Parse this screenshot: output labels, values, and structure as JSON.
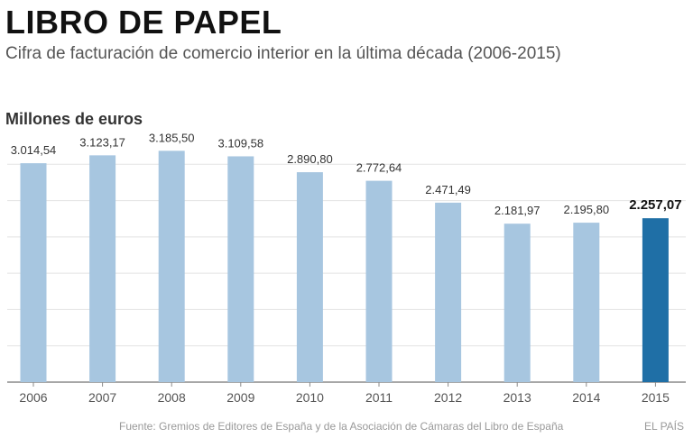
{
  "header": {
    "title": "LIBRO DE PAPEL",
    "subtitle": "Cifra de facturación de comercio interior en la última década (2006-2015)",
    "unit_label": "Millones de euros"
  },
  "footer": {
    "source": "Fuente: Gremios de Editores de España y de la Asociación de Cámaras del Libro de España",
    "credit": "EL PAÍS"
  },
  "colors": {
    "bar": "#a7c6e0",
    "highlight": "#1f6fa6",
    "grid": "#e3e3e3",
    "axis": "#8a8a8a"
  },
  "chart_data": {
    "type": "bar",
    "title": "LIBRO DE PAPEL",
    "subtitle": "Cifra de facturación de comercio interior en la última década (2006-2015)",
    "ylabel": "Millones de euros",
    "xlabel": "",
    "categories": [
      "2006",
      "2007",
      "2008",
      "2009",
      "2010",
      "2011",
      "2012",
      "2013",
      "2014",
      "2015"
    ],
    "values": [
      3014.54,
      3123.17,
      3185.5,
      3109.58,
      2890.8,
      2772.64,
      2471.49,
      2181.97,
      2195.8,
      2257.07
    ],
    "value_labels": [
      "3.014,54",
      "3.123,17",
      "3.185,50",
      "3.109,58",
      "2.890,80",
      "2.772,64",
      "2.471,49",
      "2.181,97",
      "2.195,80",
      "2.257,07"
    ],
    "highlight_category": "2015",
    "ylim": [
      0,
      3500
    ],
    "grid": true
  }
}
